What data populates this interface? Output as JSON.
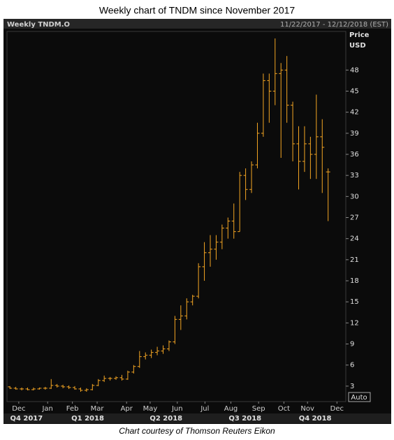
{
  "chart_data": {
    "type": "ohlc",
    "title": "Weekly chart of TNDM since November 2017",
    "label": "Weekly TNDM.O",
    "date_range": "11/22/2017 - 12/12/2018 (EST)",
    "ylabel": "Price",
    "yunit": "USD",
    "scale_mode": "Auto",
    "caption": "Chart courtesy of Thomson Reuters Eikon",
    "series": [
      {
        "color": "#f5a623",
        "open": [
          2.9,
          2.7,
          2.6,
          2.6,
          2.5,
          2.6,
          2.7,
          2.7,
          3.1,
          3.0,
          2.9,
          2.8,
          2.6,
          2.4,
          2.5,
          3.1,
          3.8,
          4.1,
          4.1,
          4.2,
          4.0,
          5.0,
          5.8,
          7.2,
          7.4,
          7.8,
          8.0,
          8.3,
          9.3,
          12.5,
          13.0,
          15.0,
          15.8,
          20.0,
          22.0,
          22.5,
          23.5,
          25.5,
          26.5,
          25.0,
          33.0,
          31.0,
          34.5,
          39.0,
          46.5,
          45.0,
          47.5,
          48.0,
          43.0,
          37.5,
          35.0,
          37.5,
          36.0,
          38.5,
          33.5
        ],
        "high": [
          3.0,
          2.9,
          2.8,
          2.8,
          2.8,
          2.8,
          2.9,
          4.0,
          3.3,
          3.2,
          3.1,
          3.0,
          2.8,
          2.7,
          3.3,
          4.0,
          4.5,
          4.3,
          4.4,
          4.6,
          5.2,
          6.0,
          8.0,
          7.8,
          8.2,
          8.6,
          8.8,
          9.5,
          13.0,
          14.5,
          15.5,
          16.0,
          20.5,
          23.5,
          24.5,
          24.5,
          26.0,
          27.0,
          29.0,
          33.5,
          34.0,
          35.0,
          40.5,
          47.5,
          47.5,
          52.5,
          49.0,
          50.0,
          43.5,
          40.0,
          40.0,
          38.5,
          44.5,
          41.0,
          34.0
        ],
        "low": [
          2.6,
          2.5,
          2.4,
          2.4,
          2.4,
          2.5,
          2.5,
          2.6,
          2.8,
          2.7,
          2.6,
          2.5,
          2.2,
          2.2,
          2.4,
          3.0,
          3.6,
          3.8,
          3.9,
          3.8,
          3.9,
          4.8,
          5.6,
          6.8,
          7.0,
          7.4,
          7.6,
          8.0,
          9.0,
          11.0,
          12.5,
          14.5,
          15.5,
          18.0,
          20.0,
          21.0,
          22.5,
          24.0,
          24.0,
          25.0,
          29.5,
          30.5,
          34.0,
          38.5,
          40.5,
          43.0,
          35.5,
          40.5,
          35.0,
          31.0,
          33.5,
          32.5,
          32.5,
          30.5,
          26.5
        ],
        "close": [
          2.7,
          2.6,
          2.6,
          2.5,
          2.6,
          2.7,
          2.7,
          3.1,
          3.0,
          2.9,
          2.8,
          2.6,
          2.4,
          2.5,
          3.1,
          3.8,
          4.1,
          4.1,
          4.2,
          4.0,
          5.0,
          5.8,
          7.2,
          7.4,
          7.8,
          8.0,
          8.3,
          9.3,
          12.5,
          13.0,
          15.0,
          15.8,
          20.0,
          22.0,
          22.5,
          23.5,
          25.5,
          26.5,
          25.0,
          33.0,
          31.0,
          34.5,
          39.0,
          46.5,
          45.0,
          47.5,
          48.0,
          43.0,
          37.5,
          35.0,
          37.5,
          36.0,
          38.5,
          37.0,
          33.5
        ]
      }
    ],
    "xlim": [
      -0.5,
      57
    ],
    "xticks": [
      {
        "value": 1.5,
        "label": "Dec"
      },
      {
        "value": 6.4,
        "label": "Jan"
      },
      {
        "value": 10.6,
        "label": "Feb"
      },
      {
        "value": 14.8,
        "label": "Mar"
      },
      {
        "value": 19.8,
        "label": "Apr"
      },
      {
        "value": 23.8,
        "label": "May"
      },
      {
        "value": 28.4,
        "label": "Jun"
      },
      {
        "value": 33.1,
        "label": "Jul"
      },
      {
        "value": 37.5,
        "label": "Aug"
      },
      {
        "value": 42.2,
        "label": "Sep"
      },
      {
        "value": 46.5,
        "label": "Oct"
      },
      {
        "value": 50.5,
        "label": "Nov"
      },
      {
        "value": 55.5,
        "label": "Dec"
      }
    ],
    "quarter_ticks": [
      {
        "value": 2.8,
        "label": "Q4 2017"
      },
      {
        "value": 13.2,
        "label": "Q1 2018"
      },
      {
        "value": 26.5,
        "label": "Q2 2018"
      },
      {
        "value": 39.9,
        "label": "Q3 2018"
      },
      {
        "value": 51.8,
        "label": "Q4 2018"
      }
    ],
    "ylim": [
      0.8,
      53.5
    ],
    "yticks": [
      3,
      6,
      9,
      12,
      15,
      18,
      21,
      24,
      27,
      30,
      33,
      36,
      39,
      42,
      45,
      48
    ]
  }
}
